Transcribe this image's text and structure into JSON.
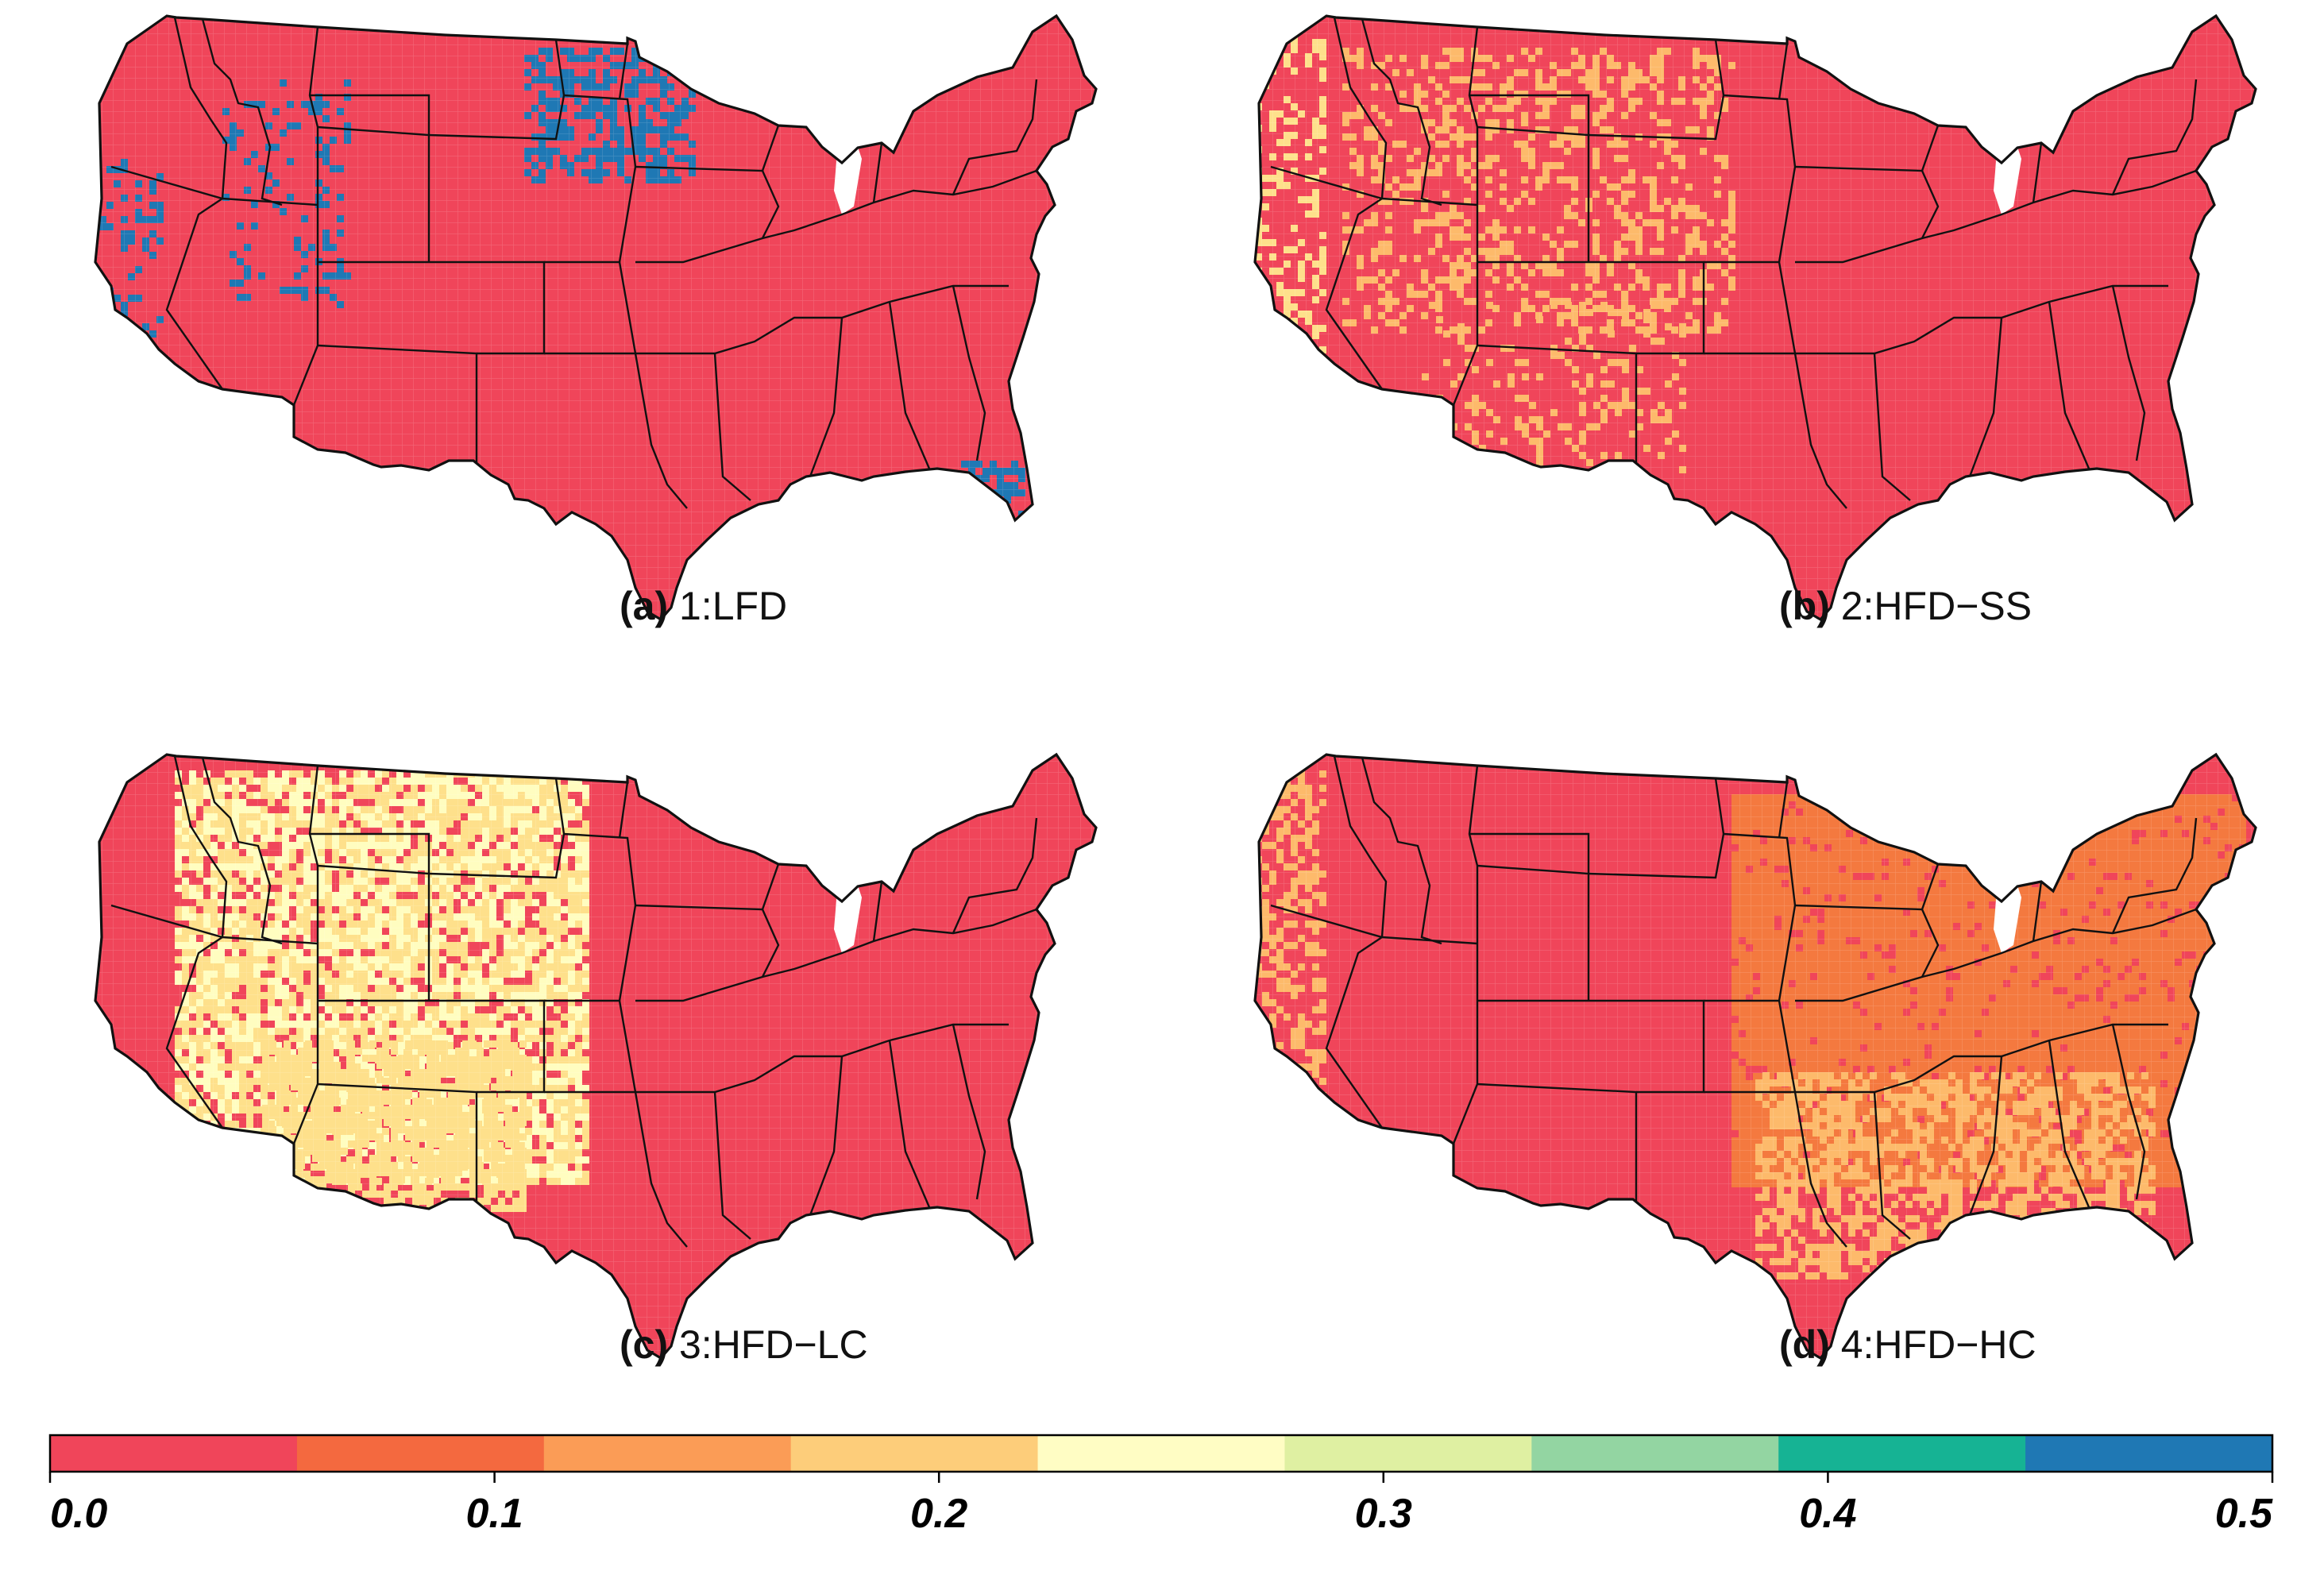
{
  "panels": [
    {
      "tag": "(a)",
      "title": "1:LFD",
      "base": "#f0455a",
      "patches": [
        {
          "color": "#1f78b4",
          "region": "northern-plains",
          "density": 0.45
        },
        {
          "color": "#1f78b4",
          "region": "great-basin",
          "density": 0.15
        },
        {
          "color": "#1f78b4",
          "region": "california",
          "density": 0.2
        },
        {
          "color": "#1f78b4",
          "region": "southeast-florida",
          "density": 0.5
        }
      ]
    },
    {
      "tag": "(b)",
      "title": "2:HFD−SS",
      "base": "#f0455a",
      "patches": [
        {
          "color": "#fdba6b",
          "region": "interior-west",
          "density": 0.3
        },
        {
          "color": "#fee08b",
          "region": "pacific-coast",
          "density": 0.3
        },
        {
          "color": "#fdba6b",
          "region": "southwest",
          "density": 0.2
        }
      ]
    },
    {
      "tag": "(c)",
      "title": "3:HFD−LC",
      "base": "#f0455a",
      "patches": [
        {
          "color": "#fee08b",
          "region": "west-plains",
          "density": 0.7
        },
        {
          "color": "#fffdc0",
          "region": "west-plains",
          "density": 0.35
        },
        {
          "color": "#fee08b",
          "region": "southwest",
          "density": 0.75
        }
      ]
    },
    {
      "tag": "(d)",
      "title": "4:HFD−HC",
      "base": "#f0455a",
      "patches": [
        {
          "color": "#f4793f",
          "region": "east",
          "density": 0.9
        },
        {
          "color": "#fdba6b",
          "region": "southeast",
          "density": 0.55
        },
        {
          "color": "#fdba6b",
          "region": "pacific-coast",
          "density": 0.4
        }
      ]
    }
  ],
  "colorbar": {
    "colors": [
      "#f0455a",
      "#f4693f",
      "#fb9c56",
      "#fdcd7a",
      "#fffdc4",
      "#dff0a2",
      "#93d5a2",
      "#16b394",
      "#1f78b4"
    ],
    "min": 0.0,
    "max": 0.5,
    "ticks": [
      "0.0",
      "0.1",
      "0.2",
      "0.3",
      "0.4",
      "0.5"
    ]
  }
}
